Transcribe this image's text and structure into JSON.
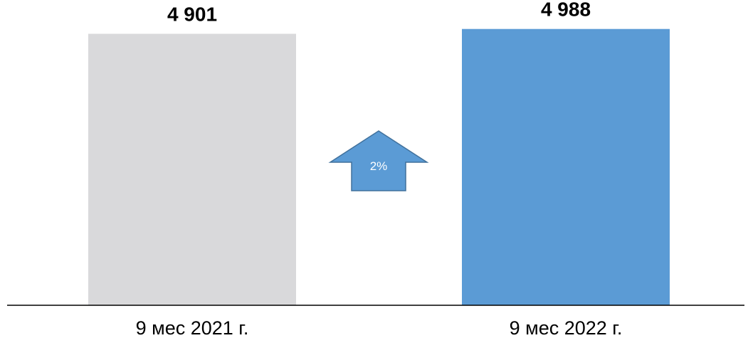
{
  "chart_data": {
    "type": "bar",
    "categories": [
      "9 мес 2021 г.",
      "9 мес 2022 г."
    ],
    "values": [
      4901,
      4988
    ],
    "value_labels": [
      "4 901",
      "4 988"
    ],
    "colors": [
      "#D9D9DB",
      "#5B9BD5"
    ],
    "ylim": [
      0,
      5100
    ],
    "grid": false,
    "annotation": {
      "text": "2%",
      "shape": "up-arrow",
      "color": "#5B9BD5"
    }
  }
}
